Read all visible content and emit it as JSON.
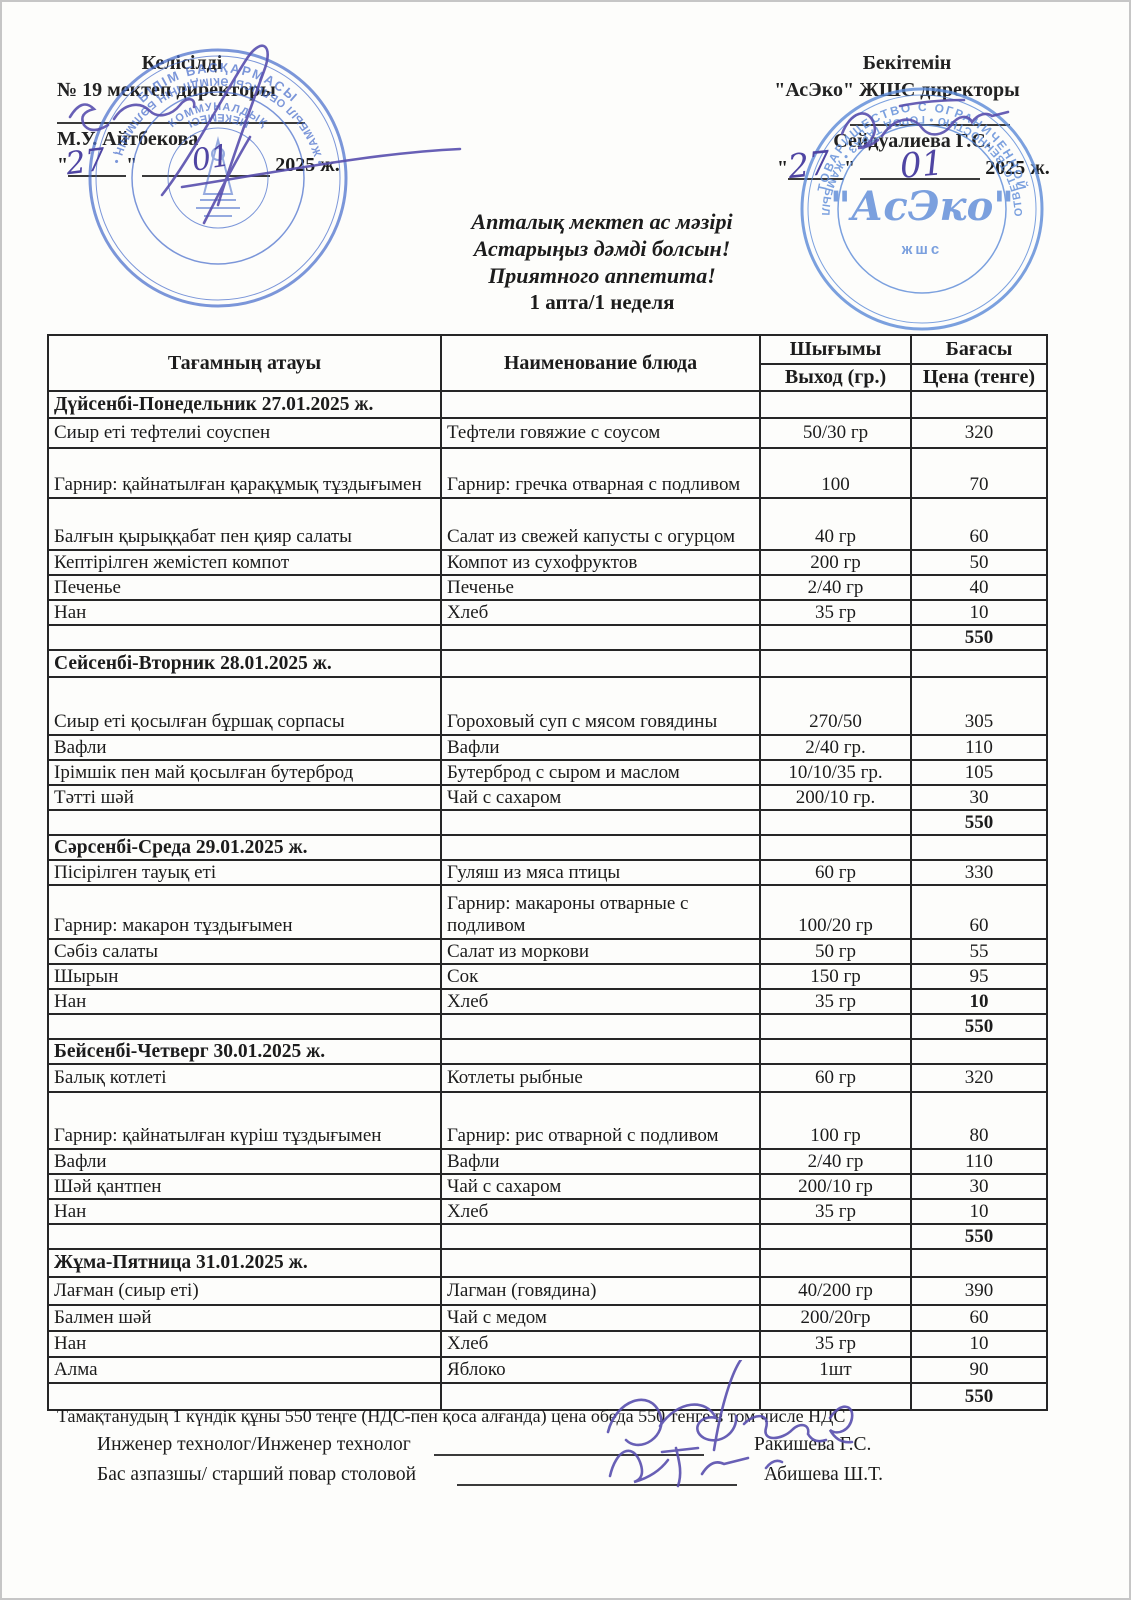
{
  "approval_left": {
    "line1": "Келісілді",
    "line2": "№ 19 мектеп директоры",
    "name": "М.У. Айтбекова",
    "date": {
      "quote": "\"",
      "day": "27",
      "month": "01",
      "year": "2025 ж."
    },
    "stamp": {
      "arc_top": "БІЛІМ БАСҚАРМАСЫ",
      "arc_bottom": "• ЖАМБЫЛ ОБЛЫСЫ ӘКІМДІГІНІҢ БӨЛІМІНІҢ •",
      "inner_top": "КОММУНАЛДЫҚ",
      "inner_bottom": "МЕКЕМЕСІ"
    }
  },
  "approval_right": {
    "line1": "Бекітемін",
    "line2": "\"АсЭко\" ЖШС  директоры",
    "name": "Сейдуалиева Г.С.",
    "date": {
      "quote": "\"",
      "day": "27",
      "month": "01",
      "year": "2025 ж."
    },
    "stamp": {
      "arc_top": "ТОВАРИЩЕСТВО С ОГРАНИЧЕННОЙ",
      "arc_bottom": "• ОТВЕТСТВЕННОСТЬЮ • ГОРОД ТАРАЗ • ЖАМБЫЛ •",
      "center": "\"АсЭко\"",
      "sub": "жшс"
    }
  },
  "title_block": {
    "line1": "Апталық мектеп ас мәзірі",
    "line2": "Астарыңыз дәмді болсын!",
    "line3": "Приятного аппетита!",
    "line4": "1 апта/1 неделя"
  },
  "table": {
    "headers": {
      "col1": "Тағамның атауы",
      "col2": "Наименование блюда",
      "col3_top": "Шығымы",
      "col3_bottom": "Выход (гр.)",
      "col4_top": "Бағасы",
      "col4_bottom": "Цена (тенге)"
    },
    "days": [
      {
        "day_header": "Дүйсенбі-Понедельник 27.01.2025 ж.",
        "rows": [
          {
            "kk": "Сиыр еті тефтелиі соуспен",
            "ru": "Тефтели говяжие с соусом",
            "out": "50/30 гр",
            "price": "320"
          },
          {
            "kk": "Гарнир: қайнатылған қарақұмық тұздығымен",
            "ru": "Гарнир: гречка отварная с подливом",
            "out": "100",
            "price": "70"
          },
          {
            "kk": "Балғын қырыққабат пен қияр салаты",
            "ru": "Салат из свежей капусты с огурцом",
            "out": "40 гр",
            "price": "60"
          },
          {
            "kk": "Кептірілген жемістеп компот",
            "ru": "Компот из сухофруктов",
            "out": "200 гр",
            "price": "50"
          },
          {
            "kk": "Печенье",
            "ru": "Печенье",
            "out": "2/40 гр",
            "price": "40"
          },
          {
            "kk": "Нан",
            "ru": "Хлеб",
            "out": "35 гр",
            "price": "10"
          }
        ],
        "total": "550"
      },
      {
        "day_header": "Сейсенбі-Вторник 28.01.2025 ж.",
        "rows": [
          {
            "kk": "Сиыр еті қосылған бұршақ сорпасы",
            "ru": "Гороховый суп с мясом говядины",
            "out": "270/50",
            "price": "305"
          },
          {
            "kk": "Вафли",
            "ru": "Вафли",
            "out": "2/40 гр.",
            "price": "110"
          },
          {
            "kk": "Ірімшік пен май қосылған бутерброд",
            "ru": "Бутерброд с сыром и маслом",
            "out": "10/10/35 гр.",
            "price": "105"
          },
          {
            "kk": "Тәтті шәй",
            "ru": "Чай с сахаром",
            "out": "200/10 гр.",
            "price": "30"
          }
        ],
        "total": "550"
      },
      {
        "day_header": "Сәрсенбі-Среда 29.01.2025 ж.",
        "rows": [
          {
            "kk": "Пісірілген тауық еті",
            "ru": "Гуляш из мяса птицы",
            "out": "60 гр",
            "price": "330"
          },
          {
            "kk": "Гарнир: макарон тұздығымен",
            "ru": "Гарнир: макароны отварные  с подливом",
            "out": "100/20 гр",
            "price": "60"
          },
          {
            "kk": "Сәбіз салаты",
            "ru": "Салат из моркови",
            "out": "50 гр",
            "price": "55"
          },
          {
            "kk": "Шырын",
            "ru": "Сок",
            "out": "150 гр",
            "price": "95"
          },
          {
            "kk": "Нан",
            "ru": "Хлеб",
            "out": "35 гр",
            "price": "10"
          }
        ],
        "total": "550"
      },
      {
        "day_header": "Бейсенбі-Четверг 30.01.2025 ж.",
        "rows": [
          {
            "kk": "Балық котлеті",
            "ru": "Котлеты рыбные",
            "out": "60 гр",
            "price": "320"
          },
          {
            "kk": "Гарнир: қайнатылған күріш тұздығымен",
            "ru": "Гарнир: рис отварной с подливом",
            "out": "100 гр",
            "price": "80"
          },
          {
            "kk": "Вафли",
            "ru": "Вафли",
            "out": "2/40 гр",
            "price": "110"
          },
          {
            "kk": "Шәй қантпен",
            "ru": "Чай с сахаром",
            "out": "200/10 гр",
            "price": "30"
          },
          {
            "kk": "Нан",
            "ru": "Хлеб",
            "out": "35 гр",
            "price": "10"
          }
        ],
        "total": "550"
      },
      {
        "day_header": "Жұма-Пятница 31.01.2025 ж.",
        "rows": [
          {
            "kk": "Лағман (сиыр еті)",
            "ru": "Лагман (говядина)",
            "out": "40/200 гр",
            "price": "390"
          },
          {
            "kk": "Балмен шәй",
            "ru": "Чай с медом",
            "out": "200/20гр",
            "price": "60"
          },
          {
            "kk": "Нан",
            "ru": "Хлеб",
            "out": "35 гр",
            "price": "10"
          },
          {
            "kk": "Алма",
            "ru": "Яблоко",
            "out": "1шт",
            "price": "90"
          }
        ],
        "total": "550"
      }
    ]
  },
  "footer": {
    "note": "Тамақтанудың 1 күндік құны 550 теңге (НДС-пен қоса алғанда) цена обеда 550 тенге в том числе НДС",
    "rows": [
      {
        "label": "Инженер технолог/Инженер технолог",
        "name": "Ракишева Г.С."
      },
      {
        "label": "Бас азпазшы/ старший повар столовой",
        "name": "Абишева Ш.Т."
      }
    ]
  },
  "colors": {
    "stamp_blue_left": "#4a6fcc",
    "stamp_blue_right": "#5b8ad8",
    "ink_blue": "#4f45a3",
    "text_black": "#1c1c1c"
  }
}
